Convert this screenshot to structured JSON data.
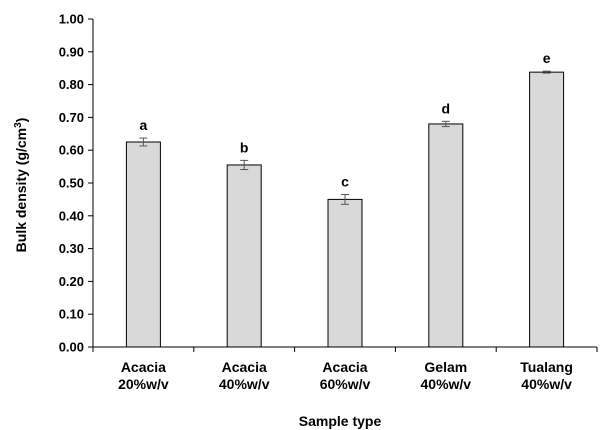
{
  "chart_data": {
    "type": "bar",
    "categories": [
      [
        "Acacia",
        "20%w/v"
      ],
      [
        "Acacia",
        "40%w/v"
      ],
      [
        "Acacia",
        "60%w/v"
      ],
      [
        "Gelam",
        "40%w/v"
      ],
      [
        "Tualang",
        "40%w/v"
      ]
    ],
    "values": [
      0.625,
      0.555,
      0.45,
      0.68,
      0.838
    ],
    "errors": [
      0.012,
      0.014,
      0.015,
      0.008,
      0.003
    ],
    "significance_labels": [
      "a",
      "b",
      "c",
      "d",
      "e"
    ],
    "xlabel": "Sample type",
    "ylabel": "Bulk density (g/cm",
    "ylabel_sup": "3",
    "ylabel_end": ")",
    "ylim": [
      0,
      1.0
    ],
    "yticks": [
      "0.00",
      "0.10",
      "0.20",
      "0.30",
      "0.40",
      "0.50",
      "0.60",
      "0.70",
      "0.80",
      "0.90",
      "1.00"
    ],
    "grid": false,
    "bar_color": "#d9d9d9",
    "bar_edge_color": "#000000"
  }
}
